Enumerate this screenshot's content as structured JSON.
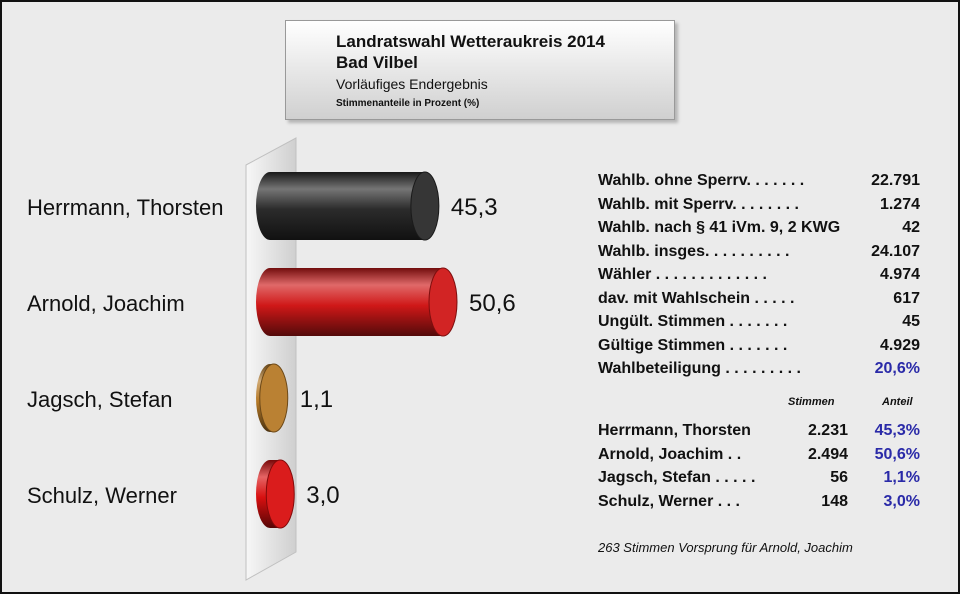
{
  "header": {
    "line1": "Landratswahl Wetteraukreis 2014",
    "line2": "Bad Vilbel",
    "line3": "Vorläufiges Endergebnis",
    "line4": "Stimmenanteile in Prozent (%)"
  },
  "chart_data": {
    "type": "bar",
    "orientation": "horizontal",
    "categories": [
      "Herrmann, Thorsten",
      "Arnold, Joachim",
      "Jagsch, Stefan",
      "Schulz, Werner"
    ],
    "values": [
      45.3,
      50.6,
      1.1,
      3.0
    ],
    "value_labels": [
      "45,3",
      "50,6",
      "1,1",
      "3,0"
    ],
    "colors": [
      "#2b2b2b",
      "#d01818",
      "#b67a28",
      "#d81010"
    ],
    "xlim": [
      0,
      50.6
    ],
    "grid": false,
    "legend": "none"
  },
  "stats": {
    "rows": [
      {
        "label": "Wahlb. ohne Sperrv. . . . . . .",
        "value": "22.791"
      },
      {
        "label": "Wahlb. mit Sperrv.  . . . . . . .",
        "value": "1.274"
      },
      {
        "label": "Wahlb. nach § 41 iVm. 9, 2 KWG",
        "value": "42"
      },
      {
        "label": "Wahlb. insges. . . . . . . . . .",
        "value": "24.107"
      },
      {
        "label": "Wähler  . . . . . . . . . . . . .",
        "value": "4.974"
      },
      {
        "label": "dav. mit Wahlschein . . . . .",
        "value": "617"
      },
      {
        "label": "Ungült. Stimmen   . . . . . . .",
        "value": "45"
      },
      {
        "label": "Gültige Stimmen   . . . . . . .",
        "value": "4.929"
      },
      {
        "label": "Wahlbeteiligung  . . . . . . . . .",
        "value": "20,6%"
      }
    ],
    "col_stimmen": "Stimmen",
    "col_anteil": "Anteil",
    "candidates": [
      {
        "label": "Herrmann, Thorsten",
        "votes": "2.231",
        "share": "45,3%"
      },
      {
        "label": "Arnold, Joachim  . .",
        "votes": "2.494",
        "share": "50,6%"
      },
      {
        "label": "Jagsch, Stefan  . . . . .",
        "votes": "56",
        "share": "1,1%"
      },
      {
        "label": "Schulz, Werner   . . .",
        "votes": "148",
        "share": "3,0%"
      }
    ],
    "note": "263 Stimmen Vorsprung für Arnold, Joachim"
  }
}
